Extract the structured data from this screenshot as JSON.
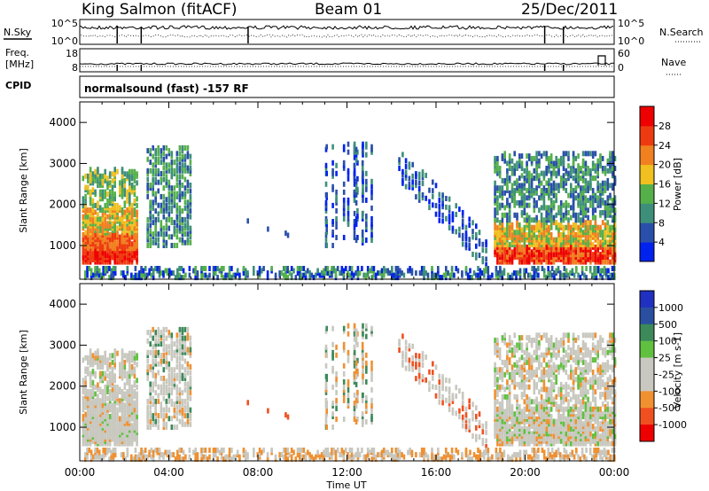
{
  "header": {
    "site": "King Salmon (fitACF)",
    "beam": "Beam 01",
    "date": "25/Dec/2011"
  },
  "strips": {
    "nsky_label": "N.Sky",
    "nsky_ticks": [
      "10^5",
      "10^0"
    ],
    "nsearch_label": "N.Search",
    "nsearch_ticks": [
      "10^5",
      "10^0"
    ],
    "freq_label_1": "Freq.",
    "freq_label_2": "[MHz]",
    "freq_ticks": [
      "18",
      "8"
    ],
    "nave_label": "Nave",
    "nave_ticks": [
      "60",
      "0"
    ],
    "cpid_label": "CPID",
    "cpid_text": "normalsound (fast) -157 RF"
  },
  "colors": {
    "power": [
      "#0022ee",
      "#2a4faa",
      "#3e8f7a",
      "#56b04a",
      "#f0c020",
      "#f08020",
      "#ee3a10",
      "#ee0000"
    ],
    "velocity": [
      "#ee0000",
      "#f05020",
      "#f09030",
      "#c8c8c0",
      "#c8c8c0",
      "#60c040",
      "#3c8a5a",
      "#2a4fa0",
      "#2030c0"
    ]
  },
  "chart_data": [
    {
      "type": "heatmap",
      "title": "Power",
      "ylabel": "Slant Range [km]",
      "xlabel": "Time UT",
      "x_ticks": [
        "00:00",
        "04:00",
        "08:00",
        "12:00",
        "16:00",
        "20:00",
        "00:00"
      ],
      "y_ticks": [
        "1000",
        "2000",
        "3000",
        "4000"
      ],
      "ylim": [
        180,
        4500
      ],
      "colorbar": {
        "label": "Power [dB]",
        "ticks": [
          "4",
          "8",
          "12",
          "16",
          "20",
          "24",
          "28"
        ],
        "range": [
          0,
          32
        ]
      }
    },
    {
      "type": "heatmap",
      "title": "Velocity",
      "ylabel": "Slant Range [km]",
      "xlabel": "Time UT",
      "x_ticks": [
        "00:00",
        "04:00",
        "08:00",
        "12:00",
        "16:00",
        "20:00",
        "00:00"
      ],
      "y_ticks": [
        "1000",
        "2000",
        "3000",
        "4000"
      ],
      "ylim": [
        180,
        4500
      ],
      "colorbar": {
        "label": "Velocity [m s-1]",
        "ticks": [
          "1000",
          "500",
          "100",
          "25",
          "-25",
          "-100",
          "-500",
          "-1000"
        ]
      }
    }
  ]
}
